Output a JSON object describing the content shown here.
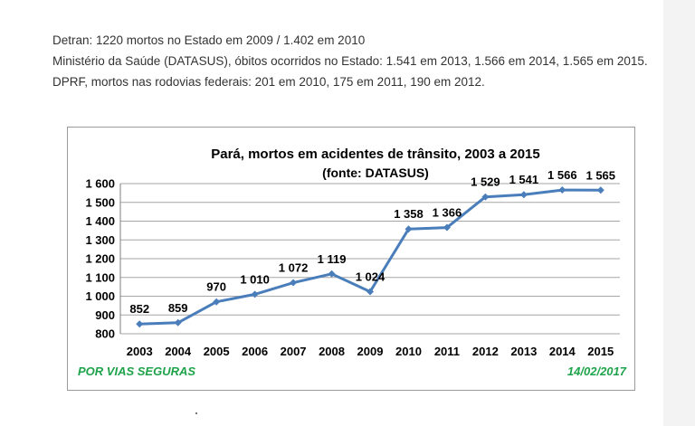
{
  "intro": {
    "line1": "Detran: 1220 mortos no Estado em 2009 / 1.402 em 2010",
    "line2": "Ministério da Saúde (DATASUS), óbitos ocorridos no Estado: 1.541 em 2013, 1.566 em 2014, 1.565 em 2015.",
    "line3": "DPRF, mortos nas rodovias federais: 201 em 2010, 175 em 2011, 190 em 2012."
  },
  "footer": {
    "left": "POR VIAS SEGURAS",
    "right": "14/02/2017"
  },
  "chart_data": {
    "type": "line",
    "title": "Pará, mortos em acidentes de trânsito, 2003 a 2015",
    "subtitle": "(fonte: DATASUS)",
    "xlabel": "",
    "ylabel": "",
    "x": [
      "2003",
      "2004",
      "2005",
      "2006",
      "2007",
      "2008",
      "2009",
      "2010",
      "2011",
      "2012",
      "2013",
      "2014",
      "2015"
    ],
    "series": [
      {
        "values": [
          852,
          859,
          970,
          1010,
          1072,
          1119,
          1024,
          1358,
          1366,
          1529,
          1541,
          1566,
          1565
        ]
      }
    ],
    "data_labels": [
      "852",
      "859",
      "970",
      "1 010",
      "1 072",
      "1 119",
      "1 024",
      "1 358",
      "1 366",
      "1 529",
      "1 541",
      "1 566",
      "1 565"
    ],
    "ylim": [
      800,
      1600
    ],
    "yticks": [
      800,
      900,
      1000,
      1100,
      1200,
      1300,
      1400,
      1500,
      1600
    ],
    "ytick_labels": [
      "800",
      "900",
      "1 000",
      "1 100",
      "1 200",
      "1 300",
      "1 400",
      "1 500",
      "1 600"
    ],
    "grid": true,
    "legend": "none",
    "line_color": "#4a7ebb",
    "grid_color": "#a6a6a6"
  }
}
